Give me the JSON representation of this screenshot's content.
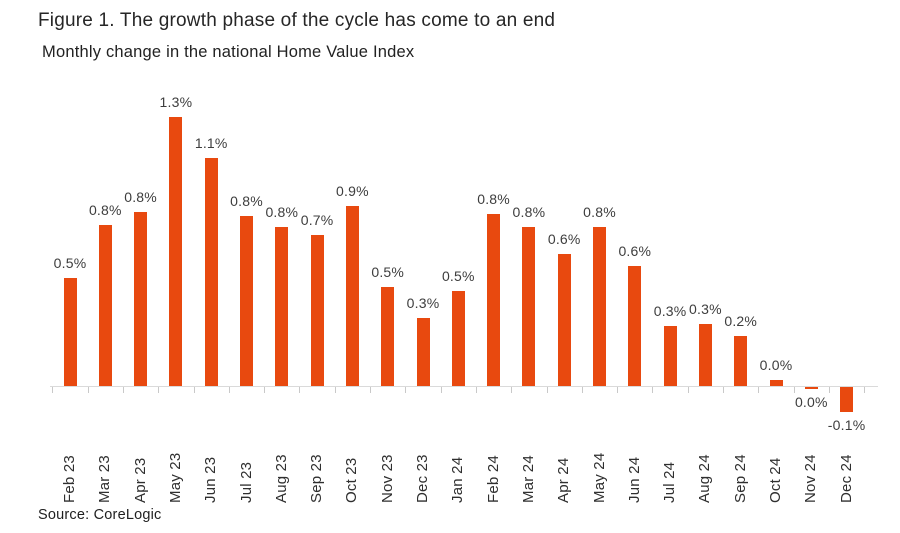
{
  "title": "Figure 1. The growth phase of the cycle has come to an end",
  "subtitle": "Monthly change in the national Home Value Index",
  "source": "Source: CoreLogic",
  "colors": {
    "bar": "#E8490F",
    "axis_line": "#DADADA",
    "tick": "#C9C9C9",
    "title_text": "#262626",
    "value_label_text": "#3D3D3D"
  },
  "chart_data": {
    "type": "bar",
    "title": "Figure 1. The growth phase of the cycle has come to an end",
    "subtitle": "Monthly change in the national Home Value Index",
    "unit": "%",
    "xlabel": "",
    "ylabel": "",
    "ylim": [
      -0.2,
      1.4
    ],
    "grid": false,
    "legend": false,
    "bar_color": "#E8490F",
    "categories": [
      "Feb 23",
      "Mar 23",
      "Apr 23",
      "May 23",
      "Jun 23",
      "Jul 23",
      "Aug 23",
      "Sep 23",
      "Oct 23",
      "Nov 23",
      "Dec 23",
      "Jan 24",
      "Feb 24",
      "Mar 24",
      "Apr 24",
      "May 24",
      "Jun 24",
      "Jul 24",
      "Aug 24",
      "Sep 24",
      "Oct 24",
      "Nov 24",
      "Dec 24"
    ],
    "values": [
      0.52,
      0.78,
      0.84,
      1.3,
      1.1,
      0.82,
      0.77,
      0.73,
      0.87,
      0.48,
      0.33,
      0.46,
      0.83,
      0.77,
      0.64,
      0.77,
      0.58,
      0.29,
      0.3,
      0.24,
      0.03,
      -0.01,
      -0.12
    ],
    "labels": [
      "0.5%",
      "0.8%",
      "0.8%",
      "1.3%",
      "1.1%",
      "0.8%",
      "0.8%",
      "0.7%",
      "0.9%",
      "0.5%",
      "0.3%",
      "0.5%",
      "0.8%",
      "0.8%",
      "0.6%",
      "0.8%",
      "0.6%",
      "0.3%",
      "0.3%",
      "0.2%",
      "0.0%",
      "0.0%",
      "-0.1%"
    ]
  }
}
